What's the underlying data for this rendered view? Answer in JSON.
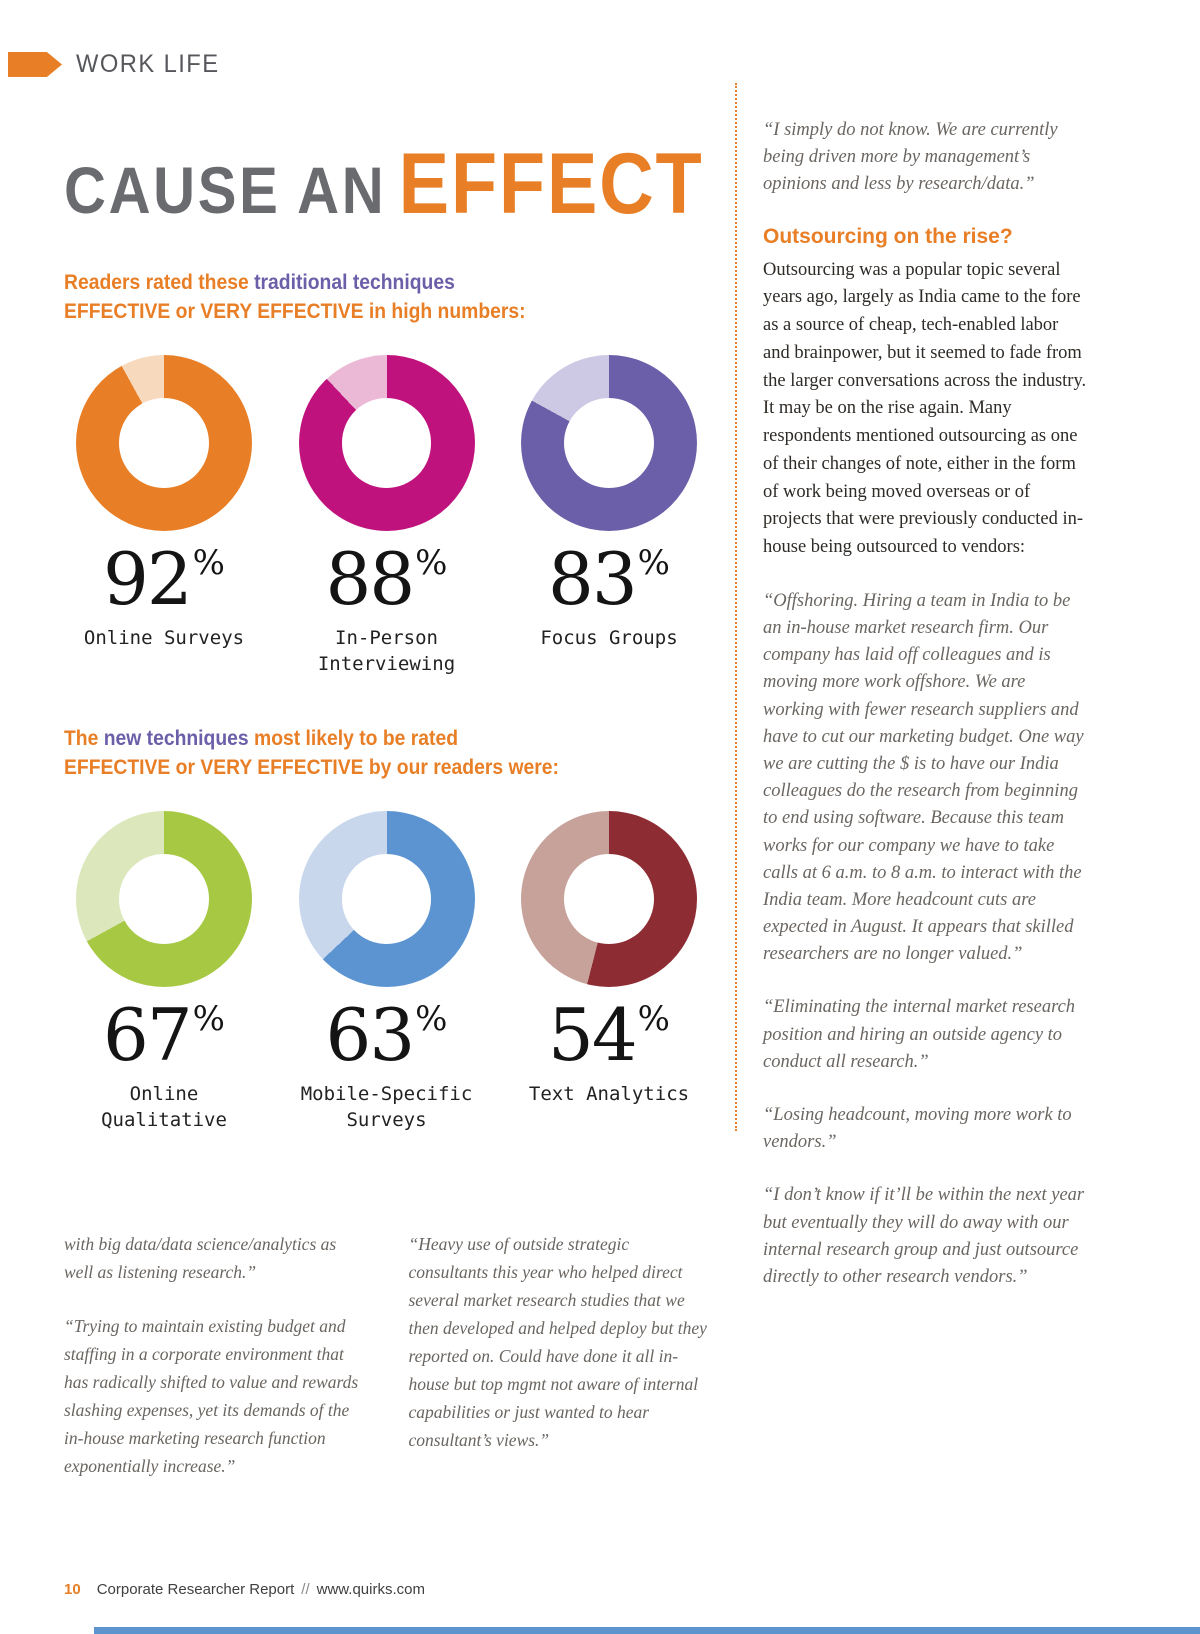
{
  "colors": {
    "accent_orange": "#E87E25",
    "accent_purple": "#6A5FA8",
    "title_gray": "#6A6B6F",
    "quote_gray": "#6A6560",
    "bottom_strip_blue": "#5E94CE"
  },
  "masthead": {
    "section_label": "WORK LIFE"
  },
  "title": {
    "part_gray": "CAUSE AN",
    "part_orange": "EFFECT"
  },
  "intro_traditional": {
    "line1_orange": "Readers rated these ",
    "line1_purple": "traditional techniques",
    "line2_orange": "EFFECTIVE or VERY EFFECTIVE in high numbers:"
  },
  "intro_new": {
    "line1_orange_a": "The ",
    "line1_purple": "new techniques",
    "line1_orange_b": " most likely to be rated",
    "line2_orange": "EFFECTIVE or VERY EFFECTIVE by our readers were:"
  },
  "chart_data": {
    "type": "donut",
    "percent_sign": "%",
    "groups": [
      {
        "heading": "traditional techniques",
        "items": [
          {
            "label": "Online Surveys",
            "percent": 92,
            "color": "#E87E25",
            "remainder_color": "#F7D9BE"
          },
          {
            "label": "In-Person Interviewing",
            "percent": 88,
            "color": "#C0127D",
            "remainder_color": "#EBB9D6"
          },
          {
            "label": "Focus Groups",
            "percent": 83,
            "color": "#6A5FA8",
            "remainder_color": "#CDC8E3"
          }
        ]
      },
      {
        "heading": "new techniques",
        "items": [
          {
            "label": "Online Qualitative",
            "percent": 67,
            "color": "#A6C843",
            "remainder_color": "#DCE8BC"
          },
          {
            "label": "Mobile-Specific Surveys",
            "percent": 63,
            "color": "#5C94D1",
            "remainder_color": "#C9D7ED"
          },
          {
            "label": "Text Analytics",
            "percent": 54,
            "color": "#8E2C33",
            "remainder_color": "#C7A29B"
          }
        ]
      }
    ]
  },
  "right_column": {
    "quote_top": "“I simply do not know. We are currently being driven more by management’s opinions and less by research/data.”",
    "heading": "Outsourcing on the rise?",
    "body": "Outsourcing was a popular topic several years ago, largely as India came to the fore as a source of cheap, tech-enabled labor and brainpower, but it seemed to fade from the larger conversations across the industry. It may be on the rise again. Many respondents mentioned outsourcing as one of their changes of note, either in the form of work being moved overseas or of projects that were previously conducted in-house being outsourced to vendors:",
    "quotes": [
      "“Offshoring. Hiring a team in India to be an in-house market research firm. Our company has laid off colleagues and is moving more work offshore. We are working with fewer research suppliers and have to cut our marketing budget. One way we are cutting the $ is to have our India colleagues do the research from beginning to end using software. Because this team works for our company we have to take calls at 6 a.m. to 8 a.m. to interact with the India team. More headcount cuts are expected in August. It appears that skilled researchers are no longer valued.”",
      "“Eliminating the internal market research position and hiring an outside agency to conduct all research.”",
      "“Losing headcount, moving more work to vendors.”",
      "“I don’t know if it’ll be within the next year but eventually they will do away with our internal research group and just outsource directly to other research vendors.”"
    ]
  },
  "bottom_columns": {
    "col1_para1": "with big data/data science/analytics as well as listening research.”",
    "col1_para2": "“Trying to maintain existing budget and staffing in a corporate environment that has radically shifted to value and rewards slashing expenses, yet its demands of the in-house marketing research function exponentially increase.”",
    "col2_para1": "“Heavy use of outside strategic consultants this year who helped direct several market research studies that we then developed and helped deploy but they reported on. Could have done it all in-house but top mgmt not aware of internal capabilities or just wanted to hear consultant’s views.”"
  },
  "footer": {
    "page_number": "10",
    "publication": "Corporate Researcher Report",
    "separator": "//",
    "website": "www.quirks.com"
  }
}
